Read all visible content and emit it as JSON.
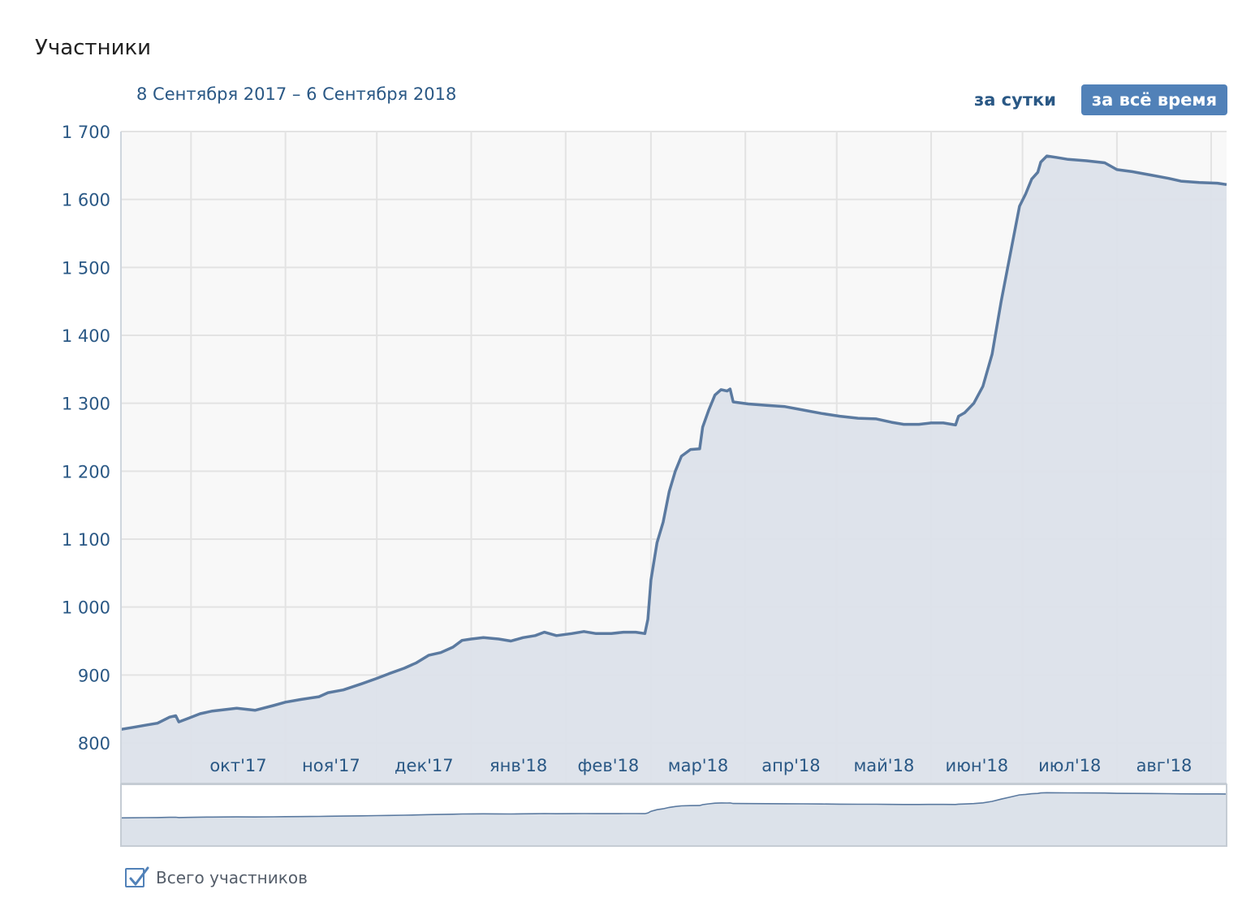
{
  "header": {
    "title": "Участники",
    "date_range": "8 Сентября 2017 – 6 Сентября 2018",
    "btn_day": "за сутки",
    "btn_all": "за всё время"
  },
  "legend": {
    "label": "Всего участников",
    "checked": true
  },
  "colors": {
    "line": "#5b7aa0",
    "fill": "#dce2ea",
    "plot_bg": "#f8f8f8",
    "grid": "#e3e3e3",
    "axis_text": "#2a5885",
    "accent": "#5181b8"
  },
  "chart_data": {
    "type": "area",
    "title": "",
    "xlabel": "",
    "ylabel": "",
    "x_range": [
      "2017-09-08",
      "2018-09-06"
    ],
    "ylim": [
      800,
      1700
    ],
    "y_ticks": [
      "1 700",
      "1 600",
      "1 500",
      "1 400",
      "1 300",
      "1 200",
      "1 100",
      "1 000",
      "900",
      "800"
    ],
    "x_ticks": [
      {
        "label": "окт'17",
        "date": "2017-10-01"
      },
      {
        "label": "ноя'17",
        "date": "2017-11-01"
      },
      {
        "label": "дек'17",
        "date": "2017-12-01"
      },
      {
        "label": "янв'18",
        "date": "2018-01-01"
      },
      {
        "label": "фев'18",
        "date": "2018-02-01"
      },
      {
        "label": "мар'18",
        "date": "2018-03-01"
      },
      {
        "label": "апр'18",
        "date": "2018-04-01"
      },
      {
        "label": "май'18",
        "date": "2018-05-01"
      },
      {
        "label": "июн'18",
        "date": "2018-06-01"
      },
      {
        "label": "июл'18",
        "date": "2018-07-01"
      },
      {
        "label": "авг'18",
        "date": "2018-08-01"
      }
    ],
    "grid": true,
    "series": [
      {
        "name": "Всего участников",
        "points": [
          [
            "2017-09-08",
            820
          ],
          [
            "2017-09-12",
            823
          ],
          [
            "2017-09-16",
            826
          ],
          [
            "2017-09-20",
            829
          ],
          [
            "2017-09-24",
            838
          ],
          [
            "2017-09-26",
            840
          ],
          [
            "2017-09-27",
            831
          ],
          [
            "2017-09-30",
            836
          ],
          [
            "2017-10-04",
            843
          ],
          [
            "2017-10-08",
            847
          ],
          [
            "2017-10-12",
            849
          ],
          [
            "2017-10-16",
            851
          ],
          [
            "2017-10-22",
            848
          ],
          [
            "2017-10-28",
            855
          ],
          [
            "2017-11-01",
            860
          ],
          [
            "2017-11-06",
            864
          ],
          [
            "2017-11-12",
            868
          ],
          [
            "2017-11-15",
            874
          ],
          [
            "2017-11-20",
            878
          ],
          [
            "2017-11-26",
            887
          ],
          [
            "2017-12-01",
            895
          ],
          [
            "2017-12-05",
            902
          ],
          [
            "2017-12-10",
            910
          ],
          [
            "2017-12-14",
            918
          ],
          [
            "2017-12-18",
            929
          ],
          [
            "2017-12-22",
            933
          ],
          [
            "2017-12-26",
            941
          ],
          [
            "2017-12-29",
            951
          ],
          [
            "2018-01-01",
            953
          ],
          [
            "2018-01-05",
            955
          ],
          [
            "2018-01-10",
            953
          ],
          [
            "2018-01-14",
            950
          ],
          [
            "2018-01-18",
            955
          ],
          [
            "2018-01-22",
            958
          ],
          [
            "2018-01-25",
            963
          ],
          [
            "2018-01-29",
            958
          ],
          [
            "2018-02-03",
            961
          ],
          [
            "2018-02-07",
            964
          ],
          [
            "2018-02-11",
            961
          ],
          [
            "2018-02-16",
            961
          ],
          [
            "2018-02-20",
            963
          ],
          [
            "2018-02-24",
            963
          ],
          [
            "2018-02-27",
            961
          ],
          [
            "2018-02-28",
            982
          ],
          [
            "2018-03-01",
            1040
          ],
          [
            "2018-03-03",
            1095
          ],
          [
            "2018-03-05",
            1125
          ],
          [
            "2018-03-07",
            1170
          ],
          [
            "2018-03-09",
            1200
          ],
          [
            "2018-03-11",
            1222
          ],
          [
            "2018-03-14",
            1232
          ],
          [
            "2018-03-17",
            1233
          ],
          [
            "2018-03-18",
            1265
          ],
          [
            "2018-03-20",
            1290
          ],
          [
            "2018-03-22",
            1312
          ],
          [
            "2018-03-24",
            1320
          ],
          [
            "2018-03-26",
            1318
          ],
          [
            "2018-03-27",
            1321
          ],
          [
            "2018-03-28",
            1302
          ],
          [
            "2018-04-02",
            1299
          ],
          [
            "2018-04-08",
            1297
          ],
          [
            "2018-04-14",
            1295
          ],
          [
            "2018-04-20",
            1290
          ],
          [
            "2018-04-26",
            1285
          ],
          [
            "2018-05-02",
            1281
          ],
          [
            "2018-05-08",
            1278
          ],
          [
            "2018-05-14",
            1277
          ],
          [
            "2018-05-19",
            1272
          ],
          [
            "2018-05-23",
            1269
          ],
          [
            "2018-05-28",
            1269
          ],
          [
            "2018-06-01",
            1271
          ],
          [
            "2018-06-05",
            1271
          ],
          [
            "2018-06-09",
            1268
          ],
          [
            "2018-06-10",
            1281
          ],
          [
            "2018-06-12",
            1286
          ],
          [
            "2018-06-15",
            1300
          ],
          [
            "2018-06-18",
            1325
          ],
          [
            "2018-06-21",
            1372
          ],
          [
            "2018-06-24",
            1450
          ],
          [
            "2018-06-27",
            1520
          ],
          [
            "2018-06-30",
            1590
          ],
          [
            "2018-07-02",
            1608
          ],
          [
            "2018-07-04",
            1630
          ],
          [
            "2018-07-06",
            1640
          ],
          [
            "2018-07-07",
            1655
          ],
          [
            "2018-07-09",
            1664
          ],
          [
            "2018-07-12",
            1662
          ],
          [
            "2018-07-16",
            1659
          ],
          [
            "2018-07-22",
            1657
          ],
          [
            "2018-07-28",
            1654
          ],
          [
            "2018-08-01",
            1644
          ],
          [
            "2018-08-06",
            1641
          ],
          [
            "2018-08-12",
            1636
          ],
          [
            "2018-08-18",
            1631
          ],
          [
            "2018-08-22",
            1627
          ],
          [
            "2018-08-28",
            1625
          ],
          [
            "2018-09-03",
            1624
          ],
          [
            "2018-09-06",
            1622
          ]
        ]
      }
    ]
  }
}
